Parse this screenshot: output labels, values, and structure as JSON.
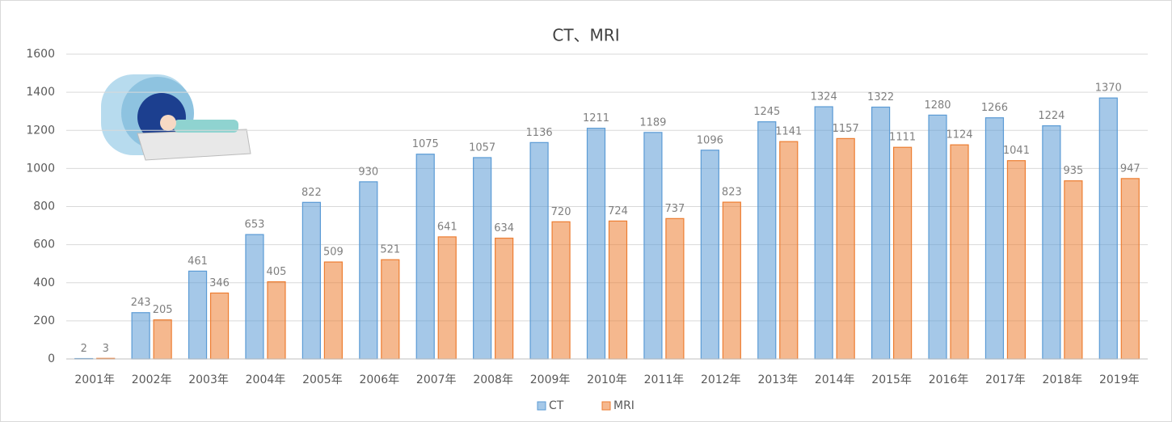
{
  "chart_data": {
    "type": "bar",
    "title": "CT、MRI",
    "categories": [
      "2001年",
      "2002年",
      "2003年",
      "2004年",
      "2005年",
      "2006年",
      "2007年",
      "2008年",
      "2009年",
      "2010年",
      "2011年",
      "2012年",
      "2013年",
      "2014年",
      "2015年",
      "2016年",
      "2017年",
      "2018年",
      "2019年"
    ],
    "series": [
      {
        "name": "CT",
        "color": "#5b9bd5",
        "values": [
          2,
          243,
          461,
          653,
          822,
          930,
          1075,
          1057,
          1136,
          1211,
          1189,
          1096,
          1245,
          1324,
          1322,
          1280,
          1266,
          1224,
          1370
        ]
      },
      {
        "name": "MRI",
        "color": "#ed7d31",
        "values": [
          3,
          205,
          346,
          405,
          509,
          521,
          641,
          634,
          720,
          724,
          737,
          823,
          1141,
          1157,
          1111,
          1124,
          1041,
          935,
          947
        ]
      }
    ],
    "ylim": [
      0,
      1600
    ],
    "yticks": [
      0,
      200,
      400,
      600,
      800,
      1000,
      1200,
      1400,
      1600
    ],
    "grid": true,
    "legend": "bottom"
  }
}
